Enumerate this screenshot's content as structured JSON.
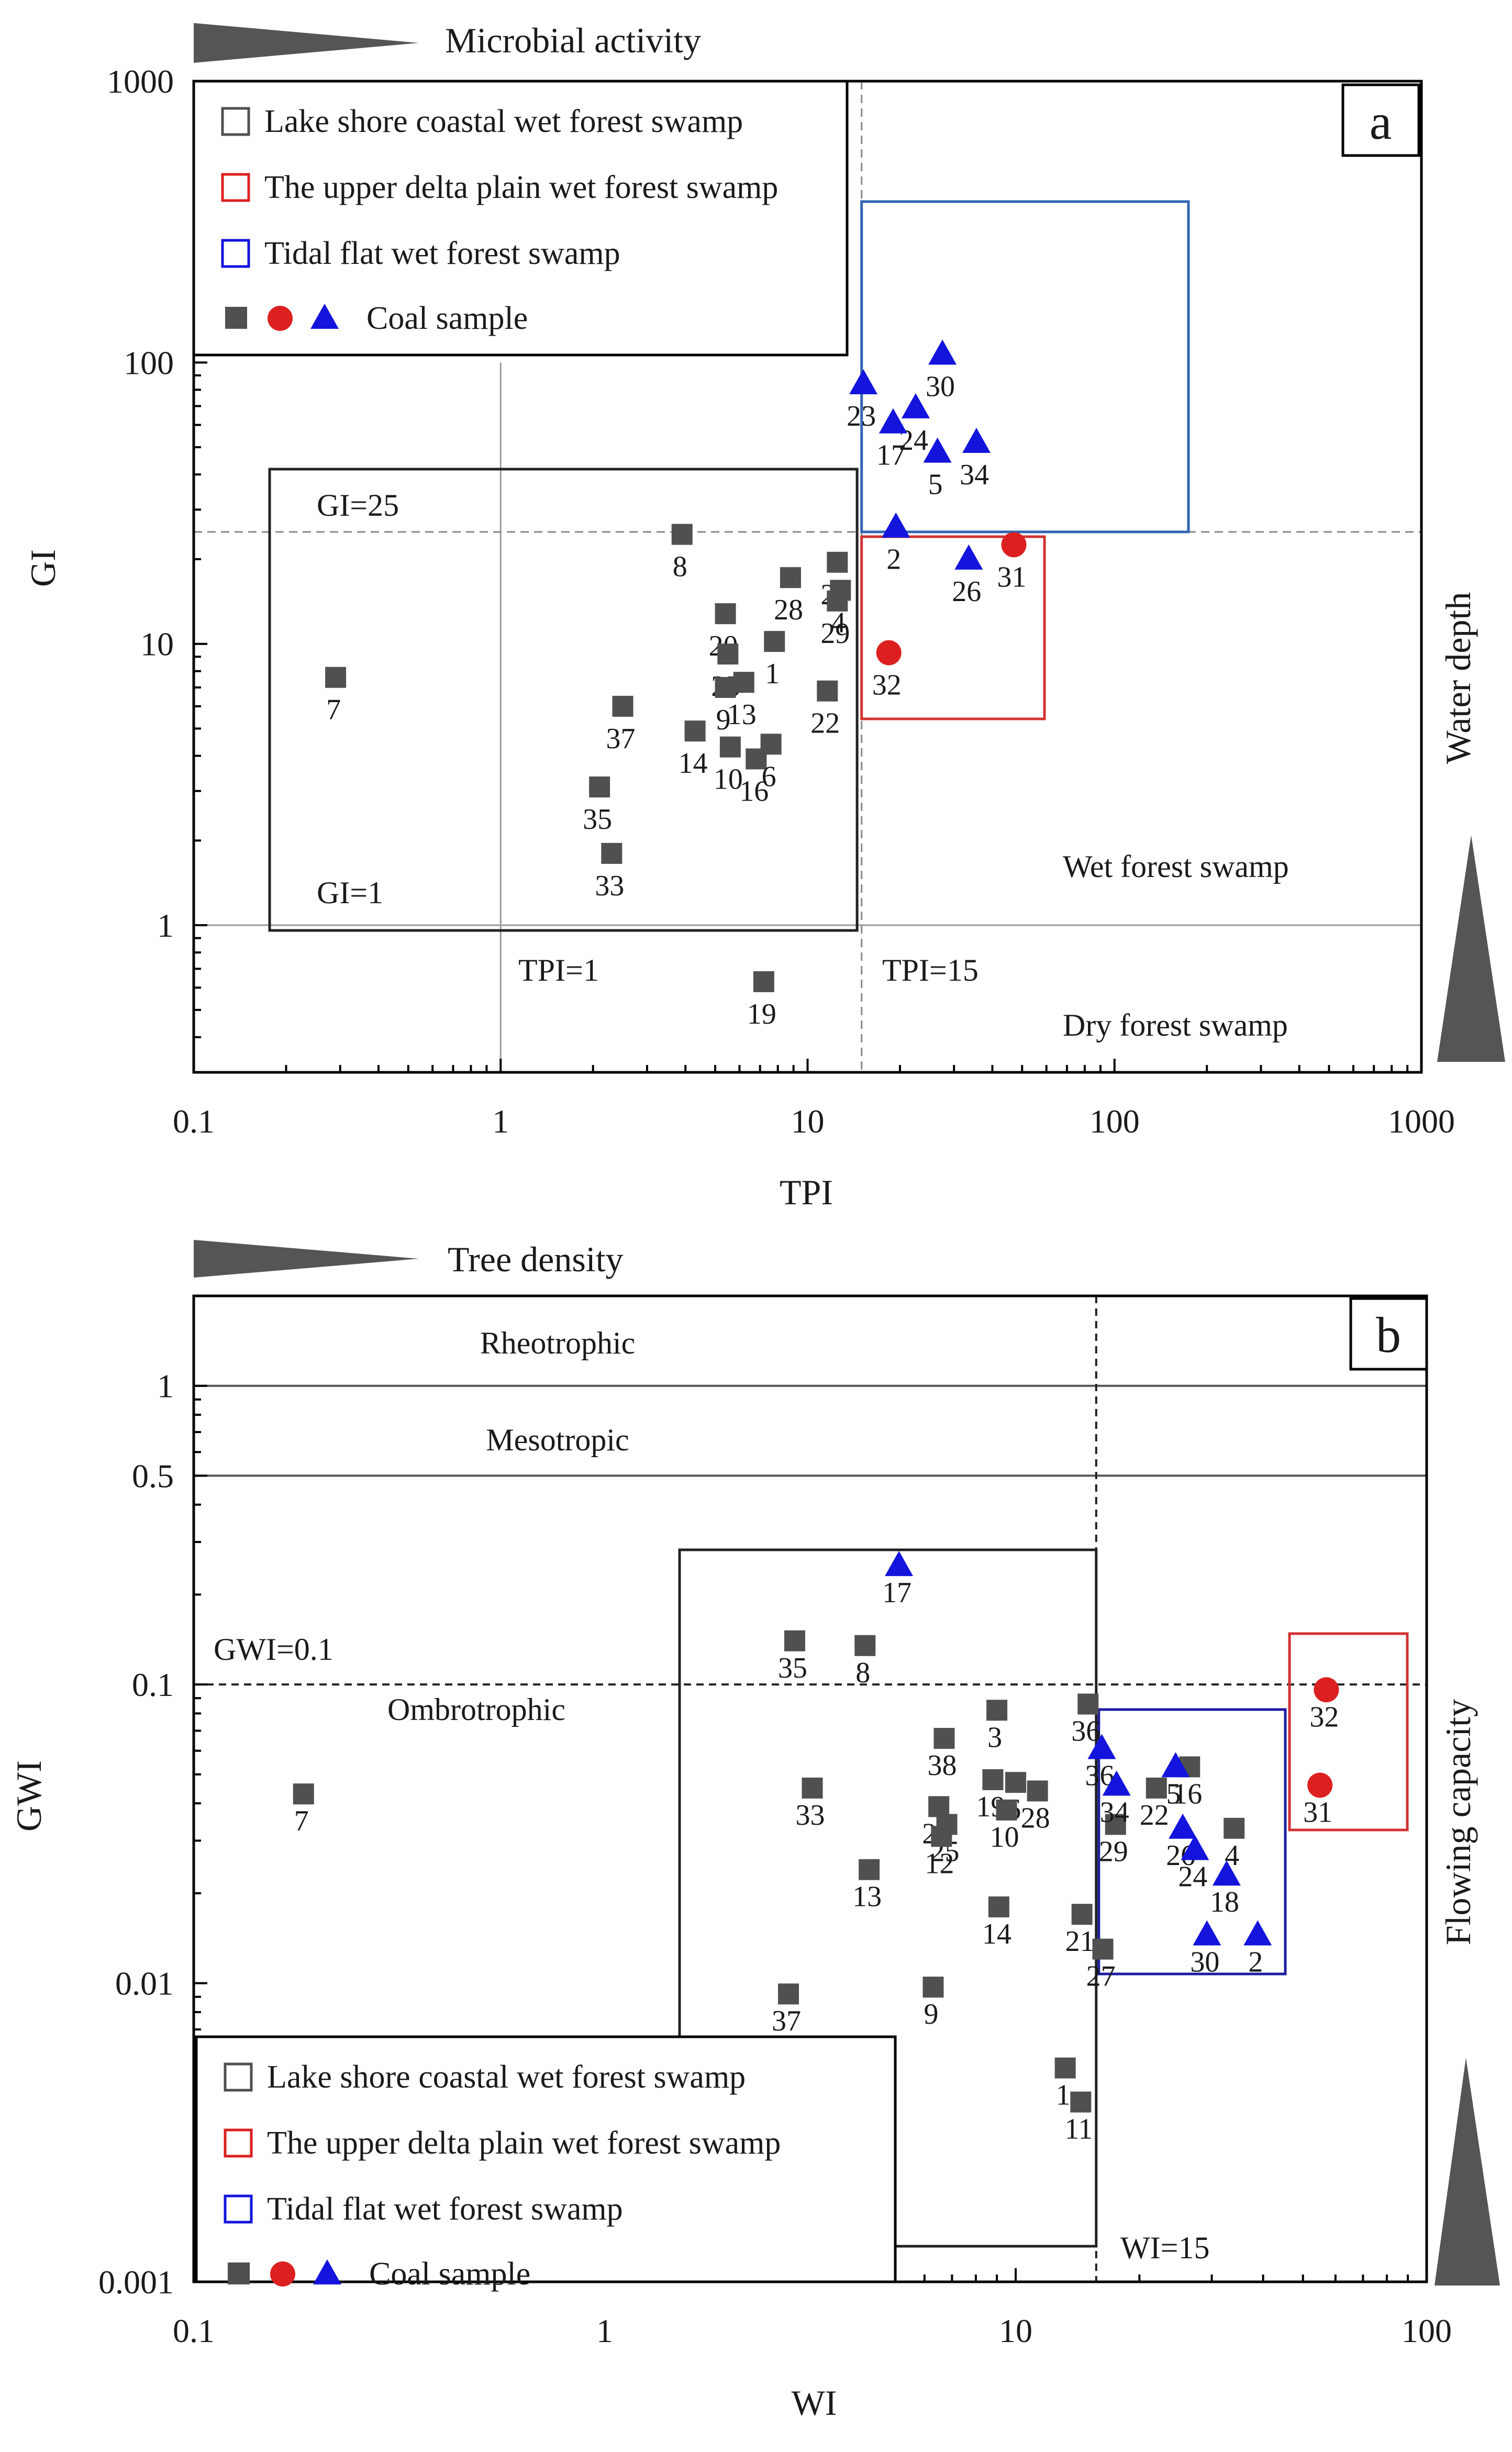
{
  "colors": {
    "lake_shore": "#505050",
    "upper_delta": "#dc2020",
    "tidal_flat": "#1414dc",
    "lake_shore_box": "#222222",
    "upper_delta_box": "#d23232",
    "tidal_flat_box_a": "#3264b4",
    "tidal_flat_box_b": "#1e1ea0"
  },
  "legend": {
    "items": [
      {
        "label": "Lake shore coastal wet forest swamp",
        "color": "#505050"
      },
      {
        "label": "The upper delta plain wet forest swamp",
        "color": "#dc2020"
      },
      {
        "label": "Tidal flat wet forest swamp",
        "color": "#1414dc"
      }
    ],
    "symbols_label": "Coal sample"
  },
  "chart_data": [
    {
      "type": "scatter",
      "panel": "a",
      "top_label": "Microbial activity",
      "side_label": "Water depth",
      "xlabel": "TPI",
      "ylabel": "GI",
      "xscale": "log",
      "yscale": "log",
      "xlim": [
        0.1,
        1000
      ],
      "ylim": [
        0.3,
        1000
      ],
      "xticks": [
        "0.1",
        "1",
        "10",
        "100",
        "1000"
      ],
      "yticks": [
        "1",
        "10",
        "100",
        "1000"
      ],
      "annotations": {
        "gi_25": "GI=25",
        "gi_1": "GI=1",
        "tpi_1": "TPI=1",
        "tpi_15": "TPI=15",
        "wet": "Wet forest swamp",
        "dry": "Dry forest swamp"
      },
      "series": [
        {
          "name": "Lake shore coastal wet forest swamp",
          "marker": "square",
          "points": [
            {
              "label": "8",
              "x": 3.9,
              "y": 24.5
            },
            {
              "label": "27",
              "x": 12.5,
              "y": 19.5
            },
            {
              "label": "28",
              "x": 8.8,
              "y": 17.2
            },
            {
              "label": "4",
              "x": 12.8,
              "y": 15.5
            },
            {
              "label": "20",
              "x": 5.4,
              "y": 12.8
            },
            {
              "label": "29",
              "x": 12.5,
              "y": 14.2
            },
            {
              "label": "25",
              "x": 5.5,
              "y": 9.2
            },
            {
              "label": "1",
              "x": 7.8,
              "y": 10.2
            },
            {
              "label": "9",
              "x": 5.4,
              "y": 7.0
            },
            {
              "label": "13",
              "x": 6.2,
              "y": 7.3
            },
            {
              "label": "22",
              "x": 11.6,
              "y": 6.8
            },
            {
              "label": "37",
              "x": 2.5,
              "y": 6.0
            },
            {
              "label": "7",
              "x": 0.29,
              "y": 7.6
            },
            {
              "label": "14",
              "x": 4.3,
              "y": 4.9
            },
            {
              "label": "10",
              "x": 5.6,
              "y": 4.3
            },
            {
              "label": "16",
              "x": 6.8,
              "y": 3.9
            },
            {
              "label": "6",
              "x": 7.6,
              "y": 4.4
            },
            {
              "label": "35",
              "x": 2.1,
              "y": 3.1
            },
            {
              "label": "33",
              "x": 2.3,
              "y": 1.8
            },
            {
              "label": "19",
              "x": 7.2,
              "y": 0.63
            }
          ]
        },
        {
          "name": "The upper delta plain wet forest swamp",
          "marker": "circle",
          "points": [
            {
              "label": "31",
              "x": 47,
              "y": 22.5
            },
            {
              "label": "32",
              "x": 18.4,
              "y": 9.3
            }
          ]
        },
        {
          "name": "Tidal flat wet forest swamp",
          "marker": "triangle",
          "points": [
            {
              "label": "23",
              "x": 15.2,
              "y": 84
            },
            {
              "label": "30",
              "x": 27.5,
              "y": 107
            },
            {
              "label": "24",
              "x": 22.5,
              "y": 69
            },
            {
              "label": "17",
              "x": 19.0,
              "y": 61
            },
            {
              "label": "5",
              "x": 26.5,
              "y": 48
            },
            {
              "label": "34",
              "x": 35.5,
              "y": 52
            },
            {
              "label": "2",
              "x": 19.4,
              "y": 26
            },
            {
              "label": "26",
              "x": 33.5,
              "y": 20
            }
          ]
        }
      ]
    },
    {
      "type": "scatter",
      "panel": "b",
      "top_label": "Tree density",
      "side_label": "Flowing capacity",
      "xlabel": "WI",
      "ylabel": "GWI",
      "xscale": "log",
      "yscale": "log",
      "xlim": [
        0.1,
        100
      ],
      "ylim": [
        0.001,
        2
      ],
      "xticks": [
        "0.1",
        "1",
        "10",
        "100"
      ],
      "yticks": [
        "0.001",
        "0.01",
        "0.1",
        "0.5",
        "1"
      ],
      "annotations": {
        "rheo": "Rheotrophic",
        "meso": "Mesotropic",
        "ombro": "Ombrotrophic",
        "gwi_01": "GWI=0.1",
        "wi_15": "WI=15"
      },
      "series": [
        {
          "name": "Lake shore coastal wet forest swamp",
          "marker": "square",
          "points": [
            {
              "label": "35",
              "x": 2.9,
              "y": 0.14
            },
            {
              "label": "8",
              "x": 4.3,
              "y": 0.135
            },
            {
              "label": "3",
              "x": 9.0,
              "y": 0.082
            },
            {
              "label": "36",
              "x": 15.0,
              "y": 0.086
            },
            {
              "label": "38",
              "x": 6.7,
              "y": 0.066
            },
            {
              "label": "19",
              "x": 8.8,
              "y": 0.048
            },
            {
              "label": "6",
              "x": 10.0,
              "y": 0.047
            },
            {
              "label": "33",
              "x": 3.2,
              "y": 0.045
            },
            {
              "label": "20",
              "x": 6.5,
              "y": 0.039
            },
            {
              "label": "25",
              "x": 6.8,
              "y": 0.034
            },
            {
              "label": "10",
              "x": 9.5,
              "y": 0.038
            },
            {
              "label": "28",
              "x": 11.3,
              "y": 0.044
            },
            {
              "label": "12",
              "x": 6.6,
              "y": 0.031
            },
            {
              "label": "13",
              "x": 4.4,
              "y": 0.024
            },
            {
              "label": "7",
              "x": 0.185,
              "y": 0.043
            },
            {
              "label": "14",
              "x": 9.1,
              "y": 0.018
            },
            {
              "label": "21",
              "x": 14.5,
              "y": 0.017
            },
            {
              "label": "27",
              "x": 16.3,
              "y": 0.013
            },
            {
              "label": "37",
              "x": 2.8,
              "y": 0.0092
            },
            {
              "label": "9",
              "x": 6.3,
              "y": 0.0097
            },
            {
              "label": "1",
              "x": 13.2,
              "y": 0.0052
            },
            {
              "label": "11",
              "x": 14.4,
              "y": 0.004
            },
            {
              "label": "22",
              "x": 22.0,
              "y": 0.045
            },
            {
              "label": "16",
              "x": 26.5,
              "y": 0.053
            },
            {
              "label": "29",
              "x": 17.5,
              "y": 0.034
            },
            {
              "label": "4",
              "x": 34.0,
              "y": 0.033
            }
          ]
        },
        {
          "name": "The upper delta plain wet forest swamp",
          "marker": "circle",
          "points": [
            {
              "label": "32",
              "x": 57,
              "y": 0.096
            },
            {
              "label": "31",
              "x": 55,
              "y": 0.046
            }
          ]
        },
        {
          "name": "Tidal flat wet forest swamp",
          "marker": "triangle",
          "points": [
            {
              "label": "17",
              "x": 5.2,
              "y": 0.25
            },
            {
              "label": "36",
              "x": 16.2,
              "y": 0.061
            },
            {
              "label": "34",
              "x": 17.6,
              "y": 0.046
            },
            {
              "label": "5",
              "x": 24.5,
              "y": 0.053
            },
            {
              "label": "26",
              "x": 25.5,
              "y": 0.033
            },
            {
              "label": "24",
              "x": 27.3,
              "y": 0.028
            },
            {
              "label": "18",
              "x": 32.6,
              "y": 0.023
            },
            {
              "label": "30",
              "x": 29.2,
              "y": 0.0145
            },
            {
              "label": "2",
              "x": 38.8,
              "y": 0.0145
            }
          ]
        }
      ]
    }
  ]
}
